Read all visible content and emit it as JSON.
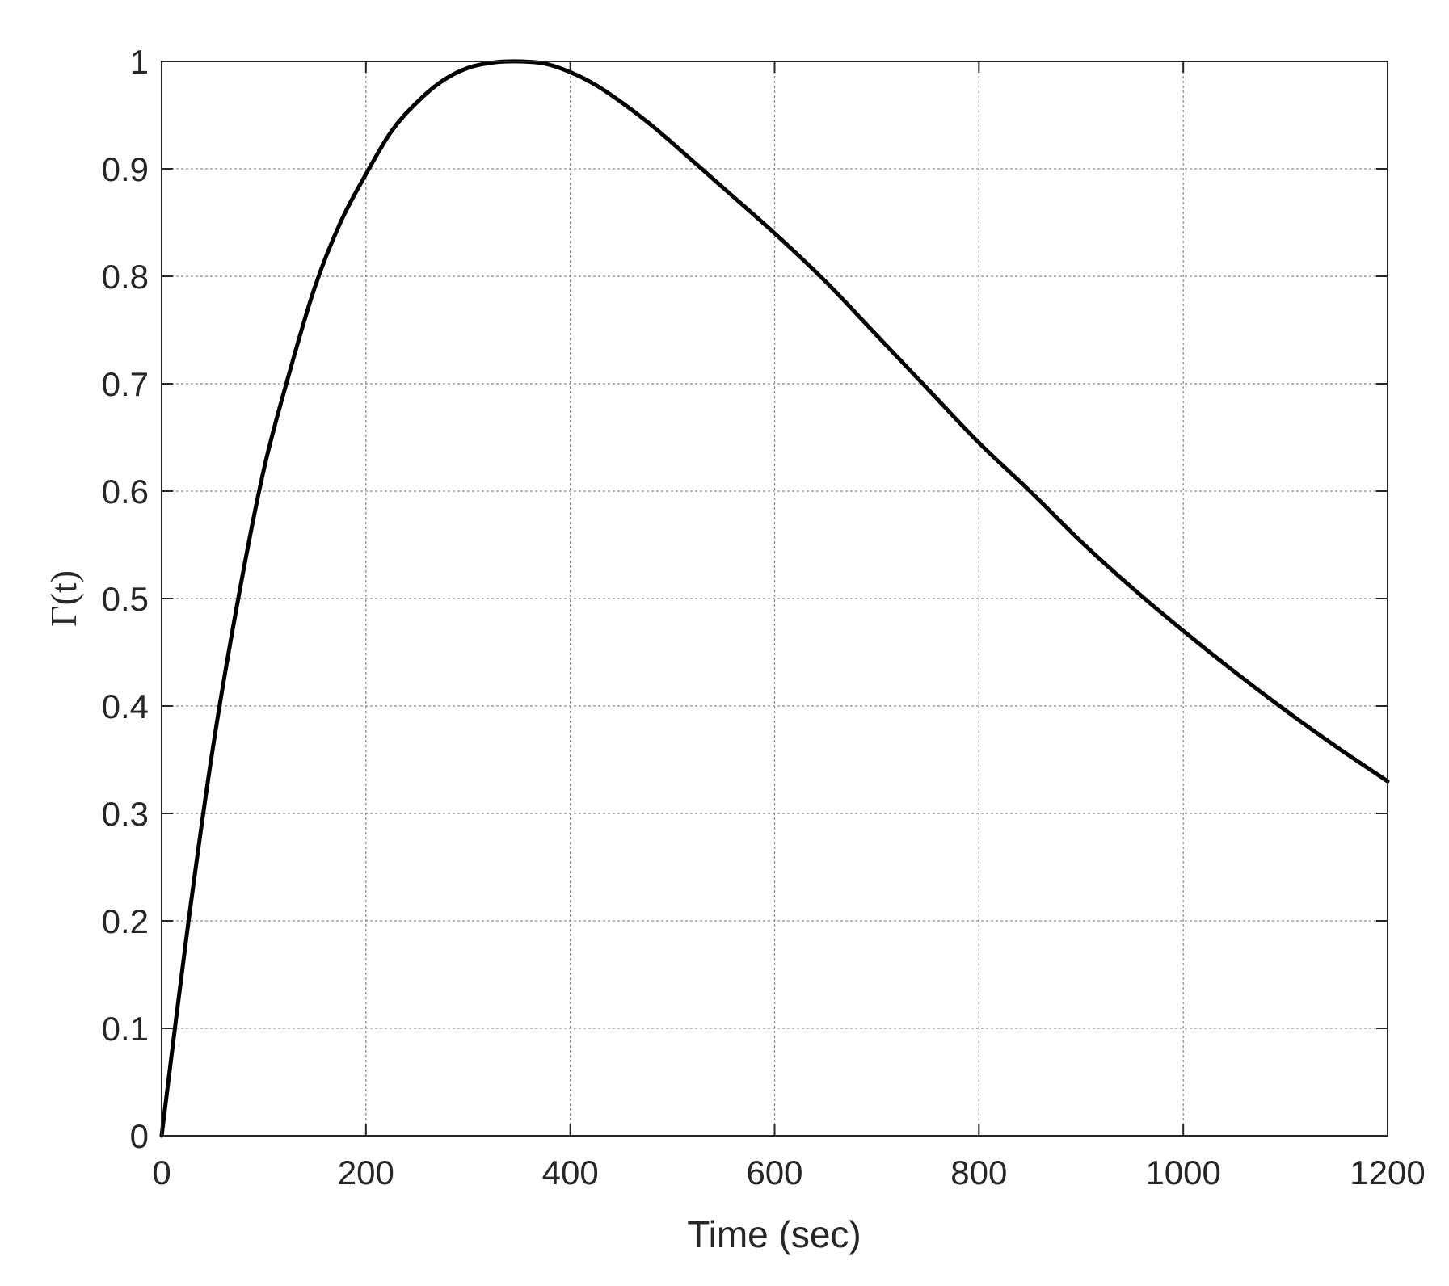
{
  "chart_data": {
    "type": "line",
    "title": "",
    "xlabel": "Time (sec)",
    "ylabel": "Γ(t)",
    "xlim": [
      0,
      1200
    ],
    "ylim": [
      0,
      1
    ],
    "grid": true,
    "xticks": [
      0,
      200,
      400,
      600,
      800,
      1000,
      1200
    ],
    "xtick_labels": [
      "0",
      "200",
      "400",
      "600",
      "800",
      "1000",
      "1200"
    ],
    "yticks": [
      0,
      0.1,
      0.2,
      0.3,
      0.4,
      0.5,
      0.6,
      0.7,
      0.8,
      0.9,
      1
    ],
    "ytick_labels": [
      "0",
      "0.1",
      "0.2",
      "0.3",
      "0.4",
      "0.5",
      "0.6",
      "0.7",
      "0.8",
      "0.9",
      "1"
    ],
    "series": [
      {
        "color": "#000000",
        "x": [
          0,
          25,
          50,
          75,
          100,
          125,
          150,
          175,
          200,
          225,
          250,
          275,
          300,
          325,
          350,
          375,
          400,
          425,
          450,
          475,
          500,
          550,
          600,
          650,
          700,
          750,
          800,
          850,
          900,
          950,
          1000,
          1050,
          1100,
          1150,
          1200
        ],
        "y": [
          0,
          0.19,
          0.36,
          0.5,
          0.62,
          0.71,
          0.79,
          0.85,
          0.895,
          0.935,
          0.962,
          0.982,
          0.994,
          0.999,
          1.0,
          0.998,
          0.99,
          0.978,
          0.962,
          0.944,
          0.924,
          0.882,
          0.84,
          0.795,
          0.745,
          0.695,
          0.645,
          0.6,
          0.553,
          0.51,
          0.47,
          0.432,
          0.396,
          0.362,
          0.33
        ]
      }
    ]
  }
}
